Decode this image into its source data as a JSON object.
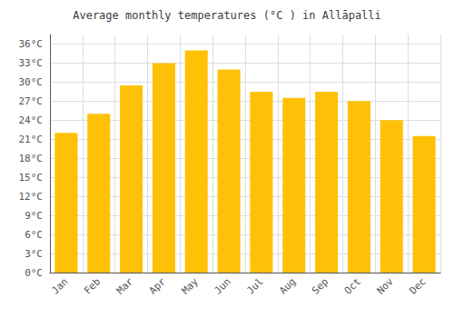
{
  "chart_data": {
    "type": "bar",
    "title": "Average monthly temperatures (°C ) in Allāpalli",
    "categories": [
      "Jan",
      "Feb",
      "Mar",
      "Apr",
      "May",
      "Jun",
      "Jul",
      "Aug",
      "Sep",
      "Oct",
      "Nov",
      "Dec"
    ],
    "values": [
      22.0,
      25.0,
      29.5,
      33.0,
      35.0,
      32.0,
      28.5,
      27.5,
      28.5,
      27.0,
      24.0,
      21.5
    ],
    "color": "#FFC107",
    "ylim": [
      0,
      37.5
    ],
    "yticks": [
      {
        "value": 0,
        "label": "0°C"
      },
      {
        "value": 3,
        "label": "3°C"
      },
      {
        "value": 6,
        "label": "6°C"
      },
      {
        "value": 9,
        "label": "9°C"
      },
      {
        "value": 12,
        "label": "12°C"
      },
      {
        "value": 15,
        "label": "15°C"
      },
      {
        "value": 18,
        "label": "18°C"
      },
      {
        "value": 21,
        "label": "21°C"
      },
      {
        "value": 24,
        "label": "24°C"
      },
      {
        "value": 27,
        "label": "27°C"
      },
      {
        "value": 30,
        "label": "30°C"
      },
      {
        "value": 33,
        "label": "33°C"
      },
      {
        "value": 36,
        "label": "36°C"
      }
    ],
    "grid": true
  }
}
